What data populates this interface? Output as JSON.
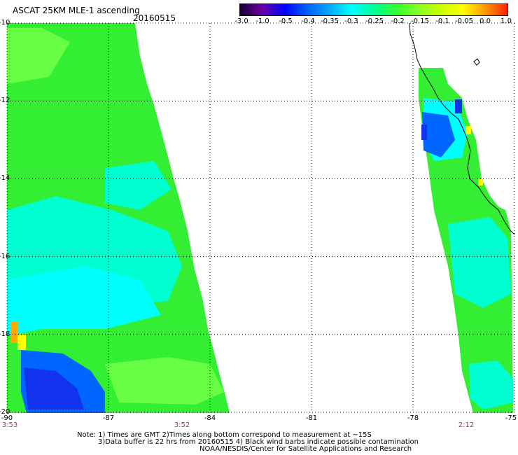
{
  "header": {
    "title": "ASCAT 25KM MLE-1 ascending",
    "date": "20160515"
  },
  "colorbar": {
    "ticks": [
      "-3.0",
      "-1.0",
      "-0.5",
      "-0.4",
      "-0.35",
      "-0.3",
      "-0.25",
      "-0.2",
      "-0.15",
      "-0.1",
      "-0.05",
      "0.0",
      "1.0"
    ],
    "colors": [
      "#1a0033",
      "#6a00a8",
      "#0000ff",
      "#0060ff",
      "#00a8ff",
      "#00ffff",
      "#00ff99",
      "#33ff33",
      "#88ff22",
      "#ccff00",
      "#ffff00",
      "#ff9900",
      "#ff2200"
    ]
  },
  "map": {
    "lat_ticks": [
      "-10",
      "-12",
      "-14",
      "-16",
      "-18",
      "-20"
    ],
    "lon_ticks": [
      "-90",
      "-87",
      "-84",
      "-81",
      "-78",
      "-75"
    ],
    "time_labels": [
      "3:53",
      "3:52",
      "2:12"
    ],
    "lon_range": [
      -90,
      -75
    ],
    "lat_range": [
      -20,
      -10
    ],
    "palette": {
      "green": "#33ee33",
      "light_green": "#66ff44",
      "cyan": "#00ffd0",
      "aqua": "#00ffff",
      "blue": "#0066ff",
      "dark_blue": "#1133ee",
      "yellow": "#ffff00",
      "orange": "#ffaa00"
    }
  },
  "notes": {
    "line1": "Note: 1) Times are GMT 2)Times along bottom correspond to measurement at ~15S",
    "line2": "3)Data buffer is 22 hrs from 20160515 4) Black wind barbs indicate possible contamination",
    "line3": "NOAA/NESDIS/Center for Satellite Applications and Research"
  }
}
